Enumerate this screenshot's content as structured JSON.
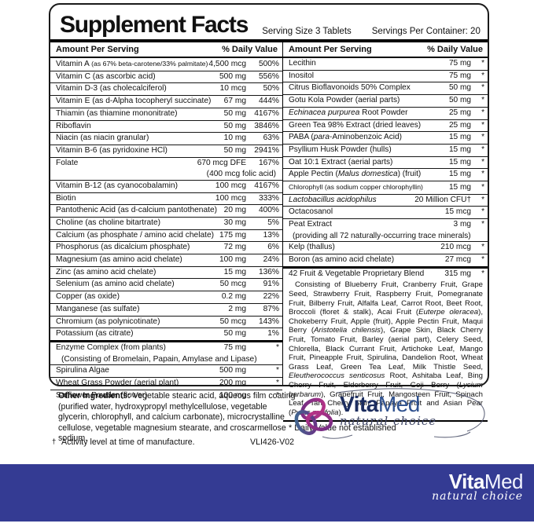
{
  "header": {
    "title": "Supplement Facts",
    "serving_size": "Serving Size 3 Tablets",
    "servings_per_container": "Servings Per Container: 20"
  },
  "table": {
    "name_header": "Amount Per Serving",
    "dv_header": "% Daily Value",
    "left_sections": [
      [
        {
          "segs": [
            {
              "t": "Vitamin A "
            },
            {
              "t": "(as 67% beta-carotene/33% palmitate)",
              "s": true
            }
          ],
          "a": "4,500 mcg",
          "d": "500%"
        },
        {
          "n": "Vitamin C (as ascorbic acid)",
          "a": "500 mg",
          "d": "556%"
        },
        {
          "n": "Vitamin D-3 (as cholecalciferol)",
          "a": "10 mcg",
          "d": "50%"
        },
        {
          "n": "Vitamin E (as d-Alpha tocopheryl succinate)",
          "a": "67 mg",
          "d": "444%"
        },
        {
          "n": "Thiamin (as thiamine mononitrate)",
          "a": "50 mg",
          "d": "4167%"
        },
        {
          "n": "Riboflavin",
          "a": "50 mg",
          "d": "3846%"
        },
        {
          "n": "Niacin (as niacin granular)",
          "a": "10 mg",
          "d": "63%"
        },
        {
          "n": "Vitamin B-6 (as pyridoxine HCl)",
          "a": "50 mg",
          "d": "2941%"
        },
        {
          "n": "Folate",
          "a": "670 mcg DFE",
          "d": "167%",
          "sub": "(400 mcg folic acid)",
          "subr": true
        },
        {
          "n": "Vitamin B-12 (as cyanocobalamin)",
          "a": "100 mcg",
          "d": "4167%"
        },
        {
          "n": "Biotin",
          "a": "100 mcg",
          "d": "333%"
        },
        {
          "n": "Pantothenic Acid (as d-calcium pantothenate)",
          "a": "20 mg",
          "d": "400%"
        },
        {
          "n": "Choline (as choline bitartrate)",
          "a": "30 mg",
          "d": "5%"
        },
        {
          "n": "Calcium (as phosphate / amino acid chelate)",
          "a": "175 mg",
          "d": "13%"
        },
        {
          "n": "Phosphorus (as dicalcium phosphate)",
          "a": "72 mg",
          "d": "6%"
        },
        {
          "n": "Magnesium (as amino acid chelate)",
          "a": "100 mg",
          "d": "24%"
        },
        {
          "n": "Zinc (as amino acid chelate)",
          "a": "15 mg",
          "d": "136%"
        },
        {
          "n": "Selenium (as amino acid chelate)",
          "a": "50 mcg",
          "d": "91%"
        },
        {
          "n": "Copper (as oxide)",
          "a": "0.2 mg",
          "d": "22%"
        },
        {
          "n": "Manganese (as sulfate)",
          "a": "2 mg",
          "d": "87%"
        },
        {
          "n": "Chromium (as polynicotinate)",
          "a": "50 mcg",
          "d": "143%"
        },
        {
          "n": "Potassium (as citrate)",
          "a": "50 mg",
          "d": "1%"
        }
      ],
      [
        {
          "n": "Enzyme Complex (from plants)",
          "a": "75 mg",
          "d": "*",
          "sub": "(Consisting of Bromelain, Papain, Amylase and Lipase)"
        },
        {
          "n": "Spirulina Algae",
          "a": "500 mg",
          "d": "*"
        },
        {
          "n": "Wheat Grass Powder (aerial plant)",
          "a": "200 mg",
          "d": "*"
        },
        {
          "n": "Safflower Powder (flower)",
          "a": "100 mg",
          "d": "*"
        }
      ]
    ],
    "right_sections": [
      [
        {
          "n": "Lecithin",
          "a": "75 mg",
          "d": "*"
        },
        {
          "n": "Inositol",
          "a": "75 mg",
          "d": "*"
        },
        {
          "n": "Citrus Bioflavonoids 50% Complex",
          "a": "50 mg",
          "d": "*"
        },
        {
          "n": "Gotu Kola Powder (aerial parts)",
          "a": "50 mg",
          "d": "*"
        },
        {
          "segs": [
            {
              "t": "Echinacea purpurea",
              "i": true
            },
            {
              "t": " Root Powder"
            }
          ],
          "a": "25 mg",
          "d": "*"
        },
        {
          "n": "Green Tea 98% Extract (dried leaves)",
          "a": "25 mg",
          "d": "*"
        },
        {
          "segs": [
            {
              "t": "PABA ("
            },
            {
              "t": "para",
              "i": true
            },
            {
              "t": "-Aminobenzoic Acid)"
            }
          ],
          "a": "15 mg",
          "d": "*"
        },
        {
          "n": "Psyllium Husk Powder (hulls)",
          "a": "15 mg",
          "d": "*"
        },
        {
          "n": "Oat 10:1 Extract (aerial parts)",
          "a": "15 mg",
          "d": "*"
        },
        {
          "segs": [
            {
              "t": "Apple Pectin ("
            },
            {
              "t": "Malus domestica",
              "i": true
            },
            {
              "t": ") (fruit)"
            }
          ],
          "a": "15 mg",
          "d": "*"
        },
        {
          "segs": [
            {
              "t": "Chlorophyll (as sodium copper chlorophyllin)",
              "s": true
            }
          ],
          "a": "15 mg",
          "d": "*"
        },
        {
          "segs": [
            {
              "t": "Lactobacillus acidophilus",
              "i": true
            }
          ],
          "a": "20 Million CFU†",
          "d": "*"
        },
        {
          "n": "Octacosanol",
          "a": "15 mcg",
          "d": "*"
        },
        {
          "n": "Peat Extract",
          "a": "3 mg",
          "d": "*",
          "sub": "(providing all 72 naturally-occurring trace minerals)"
        },
        {
          "n": "Kelp (thallus)",
          "a": "210 mcg",
          "d": "*"
        },
        {
          "n": "Boron (as amino acid chelate)",
          "a": "27 mcg",
          "d": "*"
        }
      ]
    ]
  },
  "blend": {
    "name": "42 Fruit & Vegetable Proprietary Blend",
    "amt": "315 mg",
    "dv": "*",
    "text_segs": [
      {
        "t": "Consisting of Blueberry Fruit, Cranberry Fruit, Grape Seed, Strawberry Fruit, Raspberry Fruit, Pomegranate Fruit, Bilberry Fruit, Alfalfa Leaf, Carrot Root, Beet Root, Broccoli (floret & stalk), Acai Fruit ("
      },
      {
        "t": "Euterpe oleracea",
        "i": true
      },
      {
        "t": "), Chokeberry Fruit, Apple (fruit), Apple Pectin Fruit, Maqui Berry ("
      },
      {
        "t": "Aristotelia chilensis",
        "i": true
      },
      {
        "t": "), Grape Skin, Black Cherry Fruit, Tomato Fruit, Barley (aerial part), Celery Seed, Chlorella, Black Currant Fruit, Artichoke Leaf, Mango Fruit, Pineapple Fruit, Spirulina, Dandelion Root, Wheat Grass Leaf, Green Tea Leaf, Milk Thistle Seed, "
      },
      {
        "t": "Eleutherococcus senticosus",
        "i": true
      },
      {
        "t": " Root, Ashitaba Leaf, Bing Cherry Fruit, Elderberry Fruit, Goji Berry ("
      },
      {
        "t": "Lycium barbarum",
        "i": true
      },
      {
        "t": "), Grapefruit Fruit, Mangosteen Fruit, Spinach Leaf, Tart Cherry Skin, Papaya Fruit and Asian Pear ("
      },
      {
        "t": "Pyrus pyrifolia",
        "i": true
      },
      {
        "t": ")."
      }
    ]
  },
  "dv_note": "* Daily Value not established",
  "other_ingredients": {
    "label": "Other Ingredients:",
    "text": " Vegetable stearic acid, aqueous film coating (purified water, hydroxypropyl methylcellulose, vegetable glycerin, chlorophyll, and calcium carbonate), microcrystalline cellulose, vegetable magnesium stearate, and croscarmellose sodium."
  },
  "footnote": {
    "symbol": "†",
    "text": "Activity level at time of manufacture."
  },
  "code": "VLI426-V02",
  "logo": {
    "vita": "Vita",
    "med": "Med",
    "tagline": "natural choice"
  },
  "colors": {
    "band": "#343b93",
    "vita": "#1c2d5f",
    "med": "#2f518f",
    "tagline": "#3e4565",
    "petal_purple": "#6d2d84",
    "petal_magenta": "#c03387",
    "petal_teal": "#3c6e91"
  }
}
